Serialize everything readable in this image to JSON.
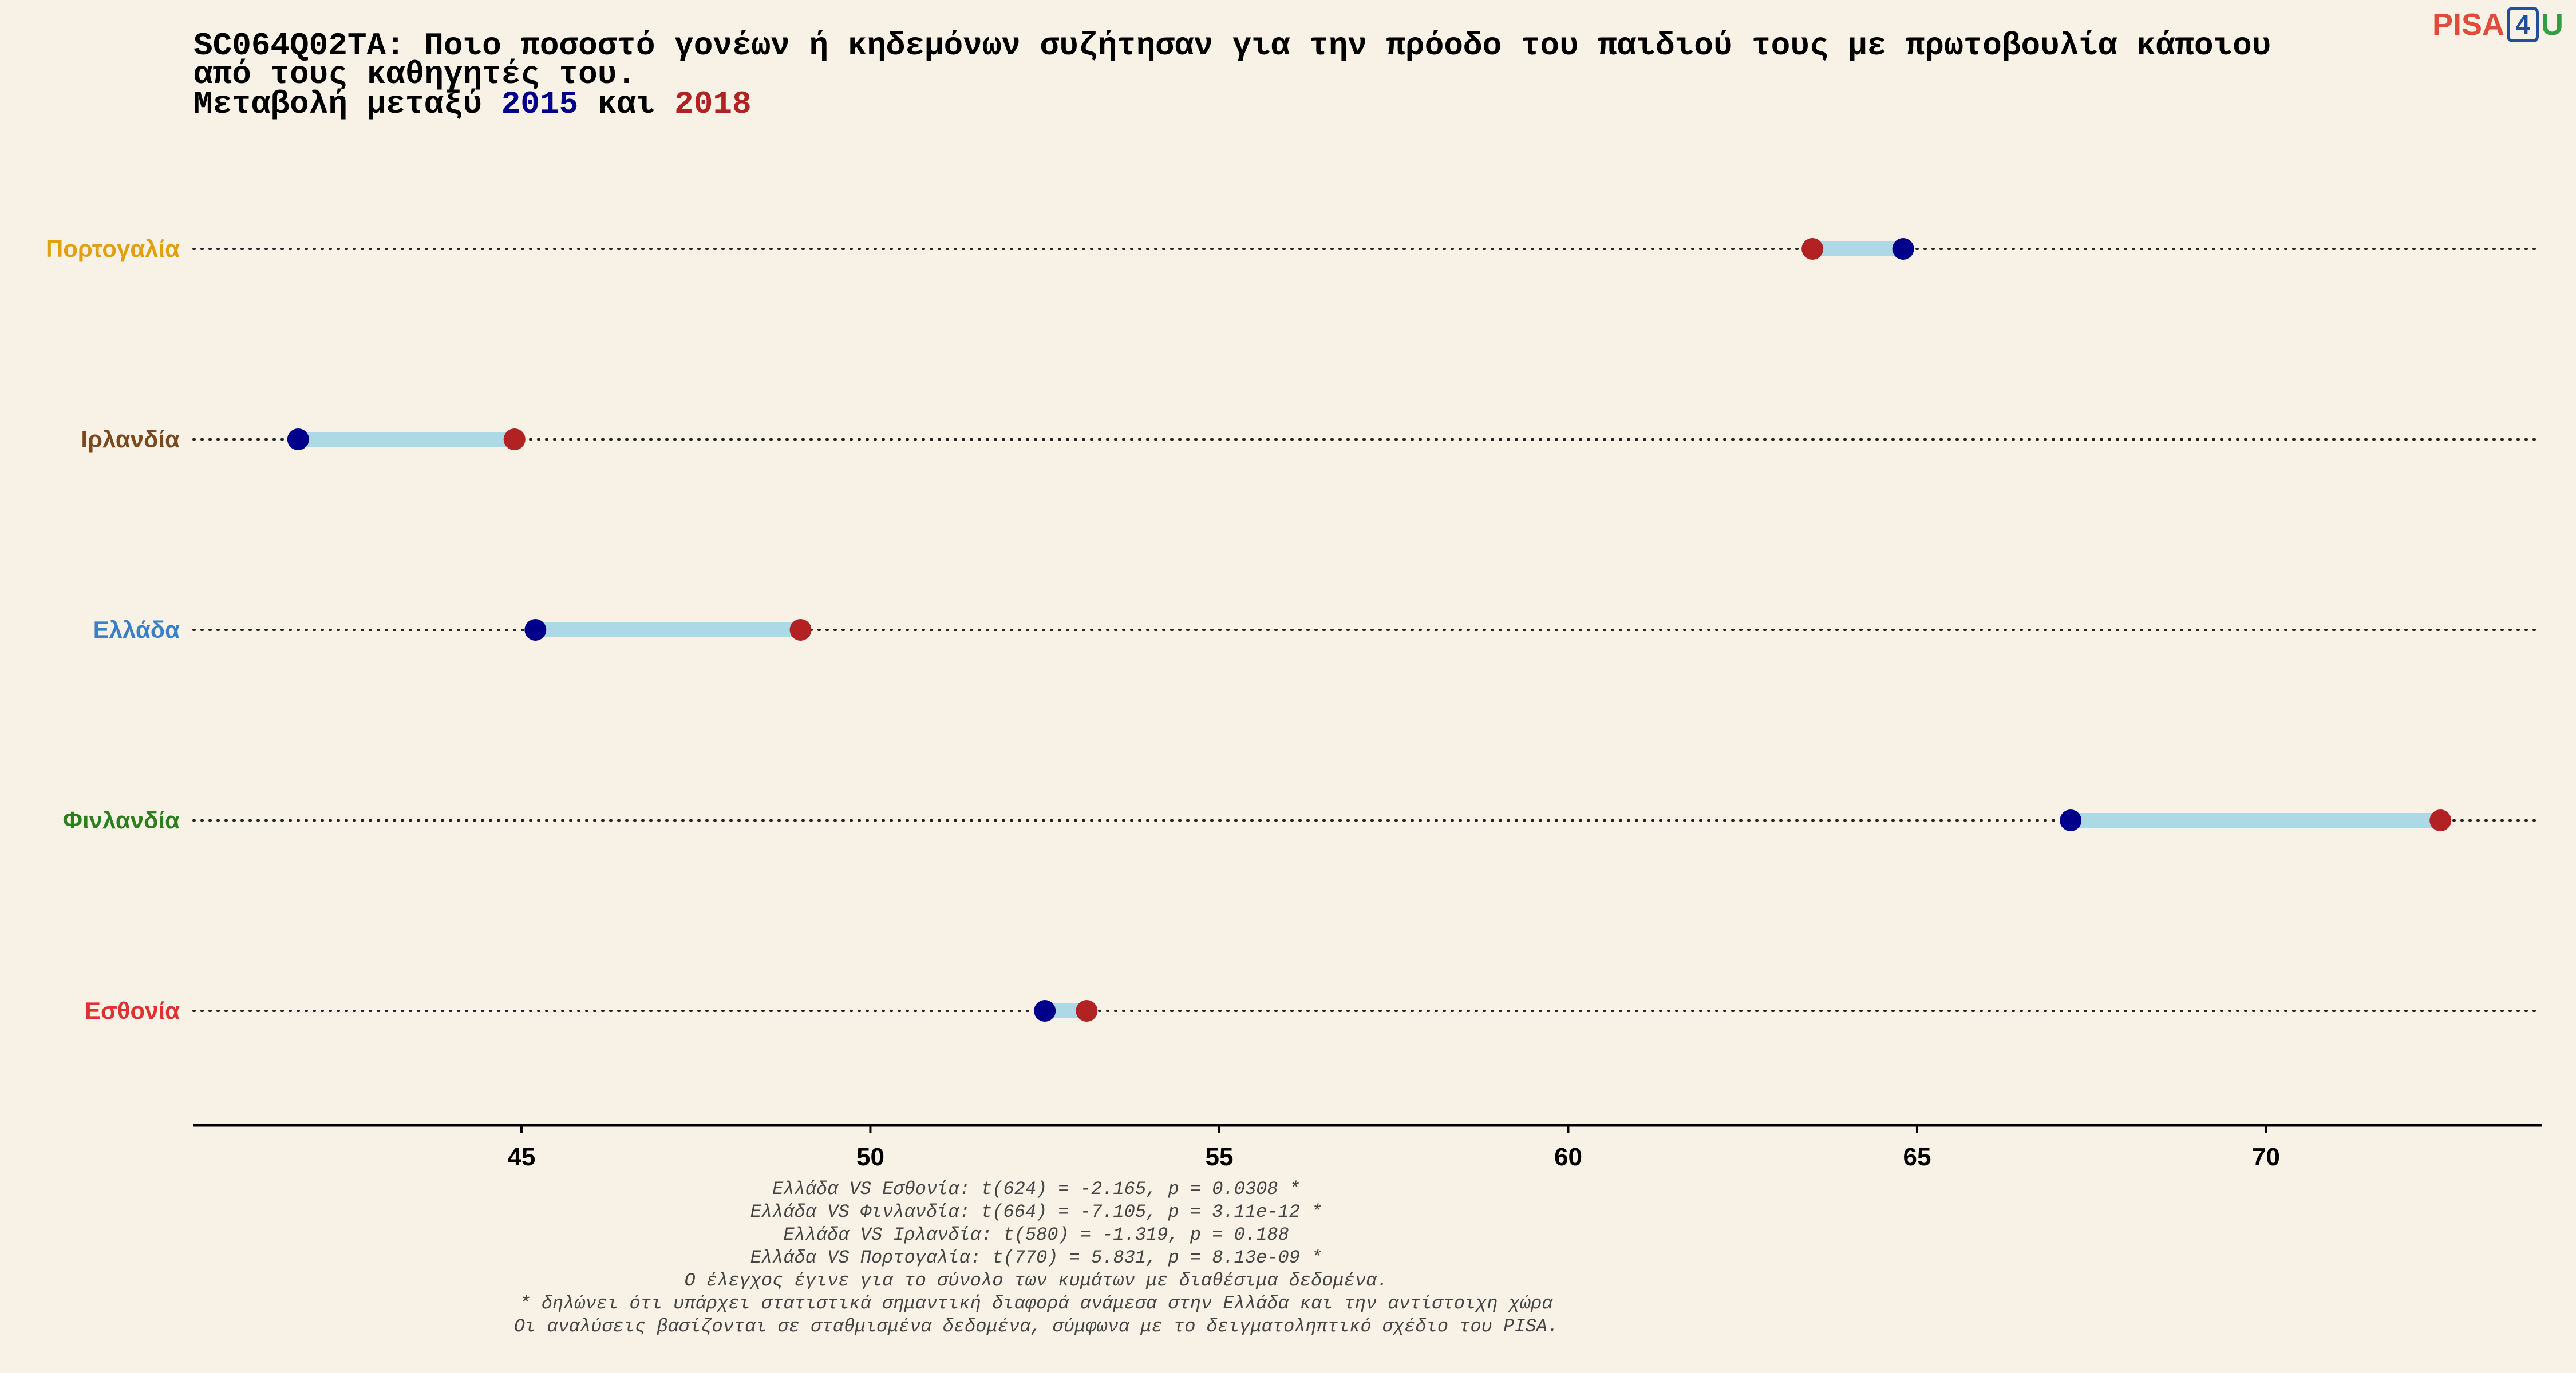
{
  "logo": {
    "text": "PISA4U",
    "part1": "PISA",
    "part2": "4",
    "part3": "U"
  },
  "title": {
    "line1": "SC064Q02TA: Ποιο ποσοστό γονέων ή κηδεμόνων συζήτησαν για την πρόοδο του παιδιού τους με πρωτοβουλία κάποιου",
    "line2": "από τους καθηγητές του.",
    "line3_prefix": "Μεταβολή μεταξύ ",
    "year1": "2015",
    "line3_middle": " και ",
    "year2": "2018"
  },
  "colors": {
    "year1": "#00008b",
    "year2": "#b22222",
    "segment": "#add8e6",
    "background": "#f8f2e6"
  },
  "chart_data": {
    "type": "dumbbell",
    "x_ticks": [
      45,
      50,
      55,
      60,
      65,
      70
    ],
    "xlim": [
      40.3,
      73.95
    ],
    "series_names": [
      "2015",
      "2018"
    ],
    "categories": [
      "Πορτογαλία",
      "Ιρλανδία",
      "Ελλάδα",
      "Φινλανδία",
      "Εσθονία"
    ],
    "category_colors": [
      "#e0a010",
      "#7a4a1e",
      "#3b7fc4",
      "#2f7d1e",
      "#e03030"
    ],
    "values_2015": [
      64.8,
      41.8,
      45.2,
      67.2,
      52.5
    ],
    "values_2018": [
      63.5,
      44.9,
      49.0,
      72.5,
      53.1
    ],
    "grid": "dotted horizontal lines per category"
  },
  "notes": [
    "Ελλάδα VS Εσθονία: t(624) = -2.165, p = 0.0308 *",
    "Ελλάδα VS Φινλανδία: t(664) = -7.105, p = 3.11e-12 *",
    "Ελλάδα VS Ιρλανδία: t(580) = -1.319, p = 0.188",
    "Ελλάδα VS Πορτογαλία: t(770) = 5.831, p = 8.13e-09 *",
    "Ο έλεγχος έγινε για το σύνολο των κυμάτων με διαθέσιμα δεδομένα.",
    "* δηλώνει ότι υπάρχει στατιστικά σημαντική διαφορά ανάμεσα στην Ελλάδα και την αντίστοιχη χώρα",
    "Οι αναλύσεις βασίζονται σε σταθμισμένα δεδομένα, σύμφωνα με το δειγματοληπτικό σχέδιο του PISA."
  ]
}
